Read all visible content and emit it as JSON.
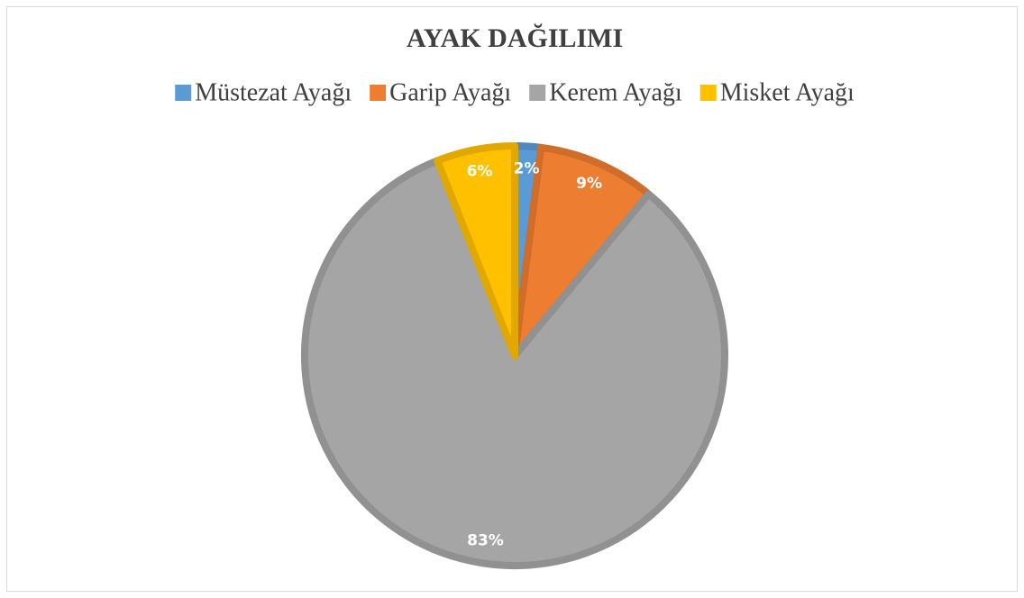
{
  "chart_data": {
    "type": "pie",
    "title": "AYAK DAĞILIMI",
    "categories": [
      "Müstezat Ayağı",
      "Garip Ayağı",
      "Kerem Ayağı",
      "Misket Ayağı"
    ],
    "values": [
      2,
      9,
      83,
      6
    ],
    "value_labels": [
      "2%",
      "9%",
      "83%",
      "6%"
    ],
    "colors": [
      "#5b9bd5",
      "#ed7d31",
      "#a5a5a5",
      "#ffc000"
    ],
    "legend": "top"
  }
}
